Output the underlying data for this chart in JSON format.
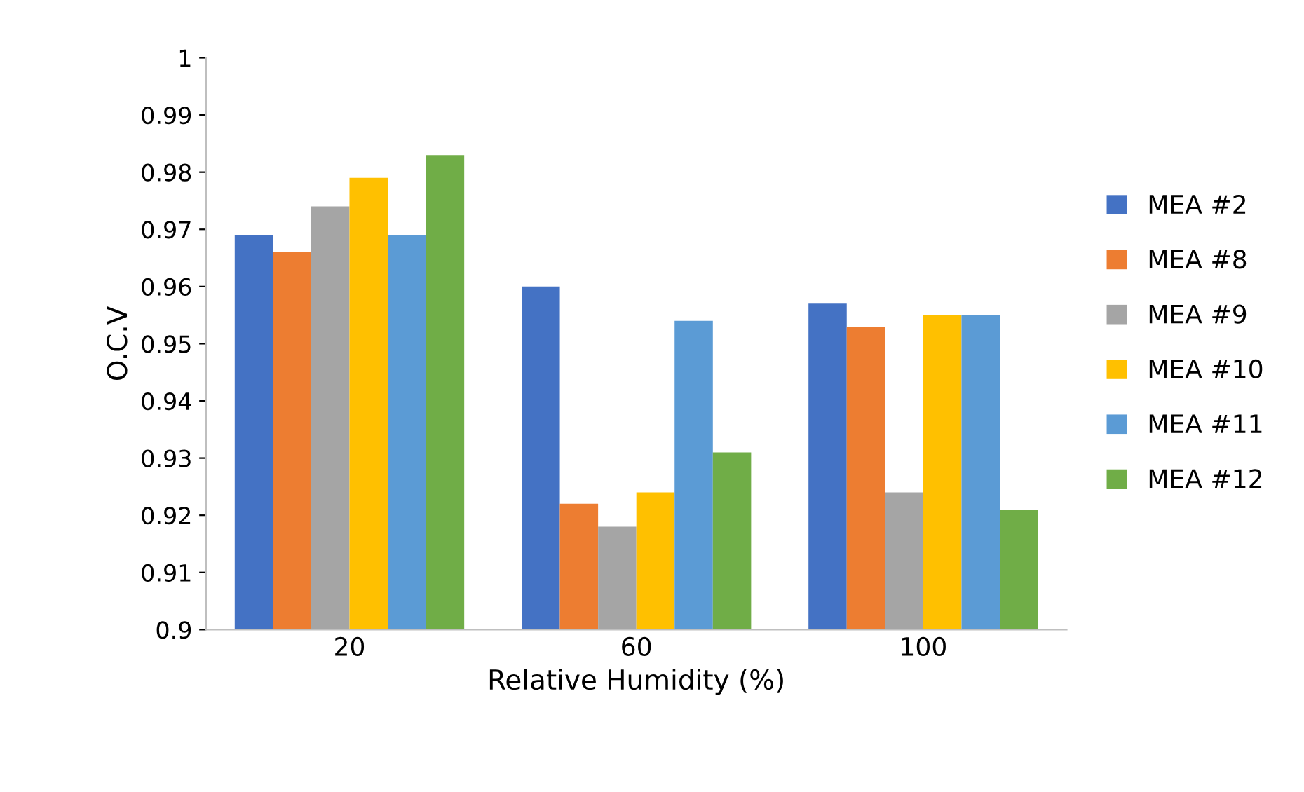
{
  "chart_data": {
    "type": "bar",
    "xlabel": "Relative Humidity (%)",
    "ylabel": "O.C.V",
    "categories": [
      "20",
      "60",
      "100"
    ],
    "series": [
      {
        "name": "MEA #2",
        "color": "#4472c4",
        "values": [
          0.969,
          0.96,
          0.957
        ]
      },
      {
        "name": "MEA #8",
        "color": "#ed7d31",
        "values": [
          0.966,
          0.922,
          0.953
        ]
      },
      {
        "name": "MEA #9",
        "color": "#a5a5a5",
        "values": [
          0.974,
          0.918,
          0.924
        ]
      },
      {
        "name": "MEA #10",
        "color": "#ffc000",
        "values": [
          0.979,
          0.924,
          0.955
        ]
      },
      {
        "name": "MEA #11",
        "color": "#5b9bd5",
        "values": [
          0.969,
          0.954,
          0.955
        ]
      },
      {
        "name": "MEA #12",
        "color": "#70ad47",
        "values": [
          0.983,
          0.931,
          0.921
        ]
      }
    ],
    "ylim": [
      0.9,
      1
    ],
    "yticks": [
      0.9,
      0.91,
      0.92,
      0.93,
      0.94,
      0.95,
      0.96,
      0.97,
      0.98,
      0.99,
      1
    ],
    "grid": false,
    "legend": "right"
  }
}
